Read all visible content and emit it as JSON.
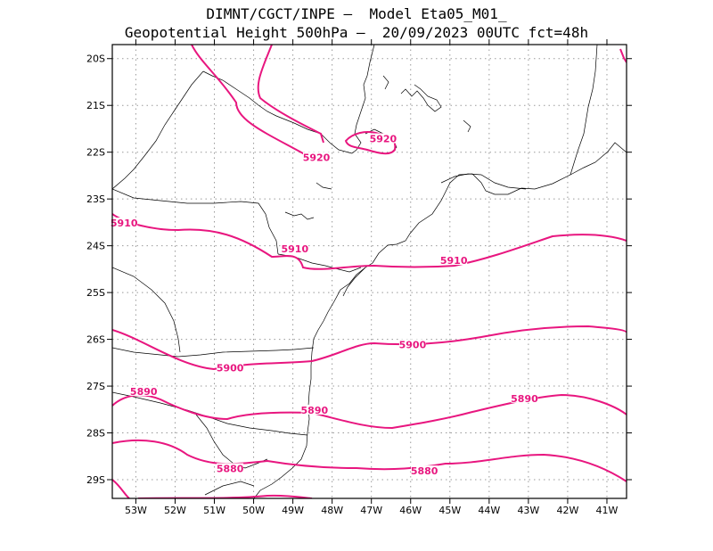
{
  "title": {
    "line1": "DIMNT/CGCT/INPE –  Model Eta05_M01_",
    "line2": "Geopotential Height 500hPa –  20/09/2023 00UTC fct=48h"
  },
  "map": {
    "lon_range": [
      -53.6,
      -40.5
    ],
    "lat_range": [
      -29.4,
      -19.7
    ],
    "lat_ticks": [
      "20S",
      "21S",
      "22S",
      "23S",
      "24S",
      "25S",
      "26S",
      "27S",
      "28S",
      "29S"
    ],
    "lon_ticks": [
      "53W",
      "52W",
      "51W",
      "50W",
      "49W",
      "48W",
      "47W",
      "46W",
      "45W",
      "44W",
      "43W",
      "42W",
      "41W"
    ],
    "grid": true,
    "contour_color": "#e8167f",
    "contour_labels": [
      {
        "text": "5920",
        "lon": -48.4,
        "lat": -22.15
      },
      {
        "text": "5920",
        "lon": -46.7,
        "lat": -21.75
      },
      {
        "text": "5910",
        "lon": -53.3,
        "lat": -23.55
      },
      {
        "text": "5910",
        "lon": -48.95,
        "lat": -24.1
      },
      {
        "text": "5910",
        "lon": -44.9,
        "lat": -24.35
      },
      {
        "text": "5900",
        "lon": -50.6,
        "lat": -26.65
      },
      {
        "text": "5900",
        "lon": -45.95,
        "lat": -26.15
      },
      {
        "text": "5890",
        "lon": -52.8,
        "lat": -27.15
      },
      {
        "text": "5890",
        "lon": -48.45,
        "lat": -27.55
      },
      {
        "text": "5890",
        "lon": -43.1,
        "lat": -27.3
      },
      {
        "text": "5880",
        "lon": -50.6,
        "lat": -28.8
      },
      {
        "text": "5880",
        "lon": -45.65,
        "lat": -28.85
      }
    ]
  }
}
